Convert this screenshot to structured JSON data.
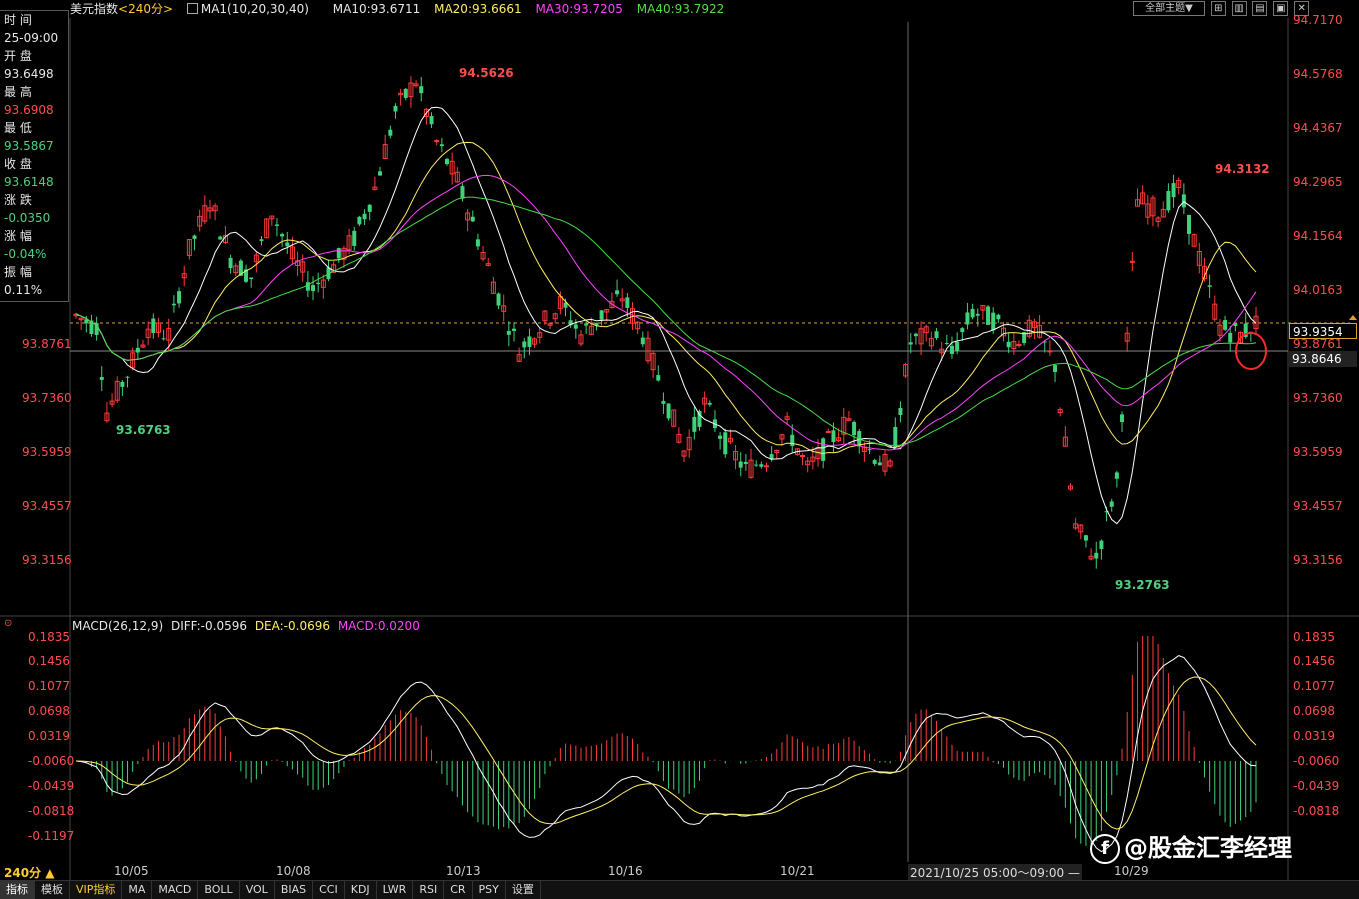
{
  "header": {
    "title": "美元指数",
    "period": "<240分>",
    "ma_label": "MA1(10,20,30,40)",
    "ma10": "MA10:93.6711",
    "ma20": "MA20:93.6661",
    "ma30": "MA30:93.7205",
    "ma40": "MA40:93.7922",
    "theme_button": "全部主题▼"
  },
  "info_panel": {
    "time_label": "时 间",
    "time_value": "25-09:00",
    "open_label": "开 盘",
    "open_value": "93.6498",
    "high_label": "最 高",
    "high_value": "93.6908",
    "low_label": "最 低",
    "low_value": "93.5867",
    "close_label": "收 盘",
    "close_value": "93.6148",
    "change_label": "涨 跌",
    "change_value": "-0.0350",
    "pct_label": "涨 幅",
    "pct_value": "-0.04%",
    "amp_label": "振 幅",
    "amp_value": "0.11%"
  },
  "price_axis": [
    "94.7170",
    "94.5768",
    "94.4367",
    "94.2965",
    "94.1564",
    "94.0163",
    "93.8761",
    "93.7360",
    "93.5959",
    "93.4557",
    "93.3156"
  ],
  "price_markers": {
    "current": "93.9354",
    "crosshair": "93.8761",
    "ma_level": "93.8646",
    "left_crosshair": "93.8761"
  },
  "annotations": {
    "high1": "94.5626",
    "low1": "93.6763",
    "high2": "94.3132",
    "low2": "93.2763"
  },
  "macd": {
    "label": "MACD(26,12,9)",
    "diff": "DIFF:-0.0596",
    "dea": "DEA:-0.0696",
    "macd": "MACD:0.0200",
    "axis": [
      "0.1835",
      "0.1456",
      "0.1077",
      "0.0698",
      "0.0319",
      "-0.0060",
      "-0.0439",
      "-0.0818",
      "-0.1197"
    ]
  },
  "date_axis": {
    "d1": "10/05",
    "d2": "10/08",
    "d3": "10/13",
    "d4": "10/16",
    "d5": "10/21",
    "cursor": "2021/10/25 05:00～09:00 —",
    "d6": "10/29"
  },
  "period_selector": "240分 ▲",
  "bottom_tabs": [
    "指标",
    "模板",
    "VIP指标",
    "MA",
    "MACD",
    "BOLL",
    "VOL",
    "BIAS",
    "CCI",
    "KDJ",
    "LWR",
    "RSI",
    "CR",
    "PSY",
    "设置"
  ],
  "watermark": "@股金汇李经理",
  "colors": {
    "up": "#ff3b3b",
    "down": "#3fd27a",
    "ma10": "#ffffff",
    "ma20": "#ffee66",
    "ma30": "#ff44ff",
    "ma40": "#44dd44"
  }
}
